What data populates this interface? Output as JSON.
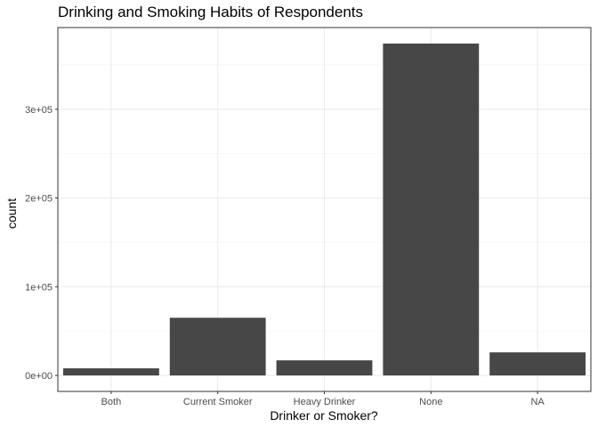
{
  "chart_data": {
    "type": "bar",
    "title": "Drinking and Smoking Habits of Respondents",
    "xlabel": "Drinker or Smoker?",
    "ylabel": "count",
    "categories": [
      "Both",
      "Current Smoker",
      "Heavy Drinker",
      "None",
      "NA"
    ],
    "values": [
      8000,
      65000,
      17000,
      374000,
      26000
    ],
    "y_ticks": [
      0,
      100000,
      200000,
      300000
    ],
    "y_tick_labels": [
      "0e+00",
      "1e+05",
      "2e+05",
      "3e+05"
    ],
    "ylim": [
      -18000,
      392000
    ],
    "grid": true,
    "bar_color": "#474747",
    "grid_major_color": "#ebebeb",
    "grid_minor_color": "#f5f5f5",
    "panel_border_color": "#333333"
  }
}
